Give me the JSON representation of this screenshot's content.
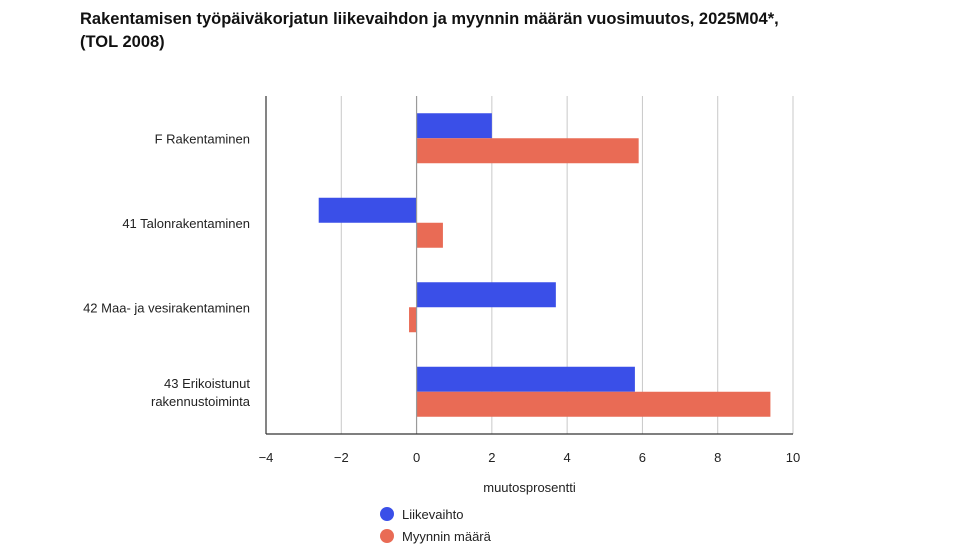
{
  "chart_data": {
    "type": "bar",
    "orientation": "horizontal",
    "title_lines": [
      "Rakentamisen työpäiväkorjatun liikevaihdon ja myynnin määrän vuosimuutos, 2025M04*,",
      "(TOL 2008)"
    ],
    "xlabel": "muutosprosentti",
    "ylabel": "",
    "xlim": [
      -4,
      10
    ],
    "xticks": [
      -4,
      -2,
      0,
      2,
      4,
      6,
      8,
      10
    ],
    "xtick_labels": [
      "−4",
      "−2",
      "0",
      "2",
      "4",
      "6",
      "8",
      "10"
    ],
    "grid": "vertical",
    "legend_position": "bottom",
    "categories": [
      [
        "F Rakentaminen"
      ],
      [
        "41 Talonrakentaminen"
      ],
      [
        "42 Maa- ja vesirakentaminen"
      ],
      [
        "43 Erikoistunut",
        "rakennustoiminta"
      ]
    ],
    "series": [
      {
        "name": "Liikevaihto",
        "color": "#3a4fe8",
        "values": [
          2.0,
          -2.6,
          3.7,
          5.8
        ]
      },
      {
        "name": "Myynnin määrä",
        "color": "#e96b55",
        "values": [
          5.9,
          0.7,
          -0.2,
          9.4
        ]
      }
    ]
  }
}
